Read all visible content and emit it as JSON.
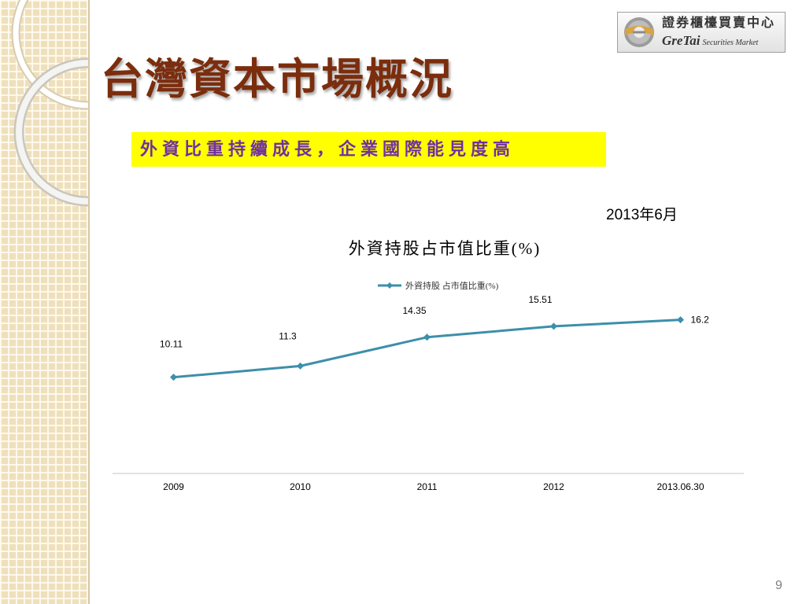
{
  "slide": {
    "title": "台灣資本市場概況",
    "highlight": "外資比重持續成長，企業國際能見度高",
    "date": "2013年6月",
    "page_number": "9"
  },
  "logo": {
    "icon": "gretai-logo-icon",
    "name_zh": "證券櫃檯買賣中心",
    "brand": "GreTai",
    "tagline": "Securities Market"
  },
  "colors": {
    "title": "#7b2d0d",
    "highlight_background": "#ffff00",
    "highlight_text": "#7030a0",
    "series": "#3d8faa",
    "sidebar": "#efe0bd"
  },
  "chart_data": {
    "type": "line",
    "title": "外資持股占市值比重(%)",
    "categories": [
      "2009",
      "2010",
      "2011",
      "2012",
      "2013.06.30"
    ],
    "series": [
      {
        "name": "外資持股 占市值比重(%)",
        "values": [
          10.11,
          11.3,
          14.35,
          15.51,
          16.2
        ]
      }
    ],
    "ylim": [
      0,
      18
    ],
    "y_axis_shown": false,
    "grid": false,
    "legend": "top",
    "data_labels": true,
    "markers": "diamond"
  }
}
